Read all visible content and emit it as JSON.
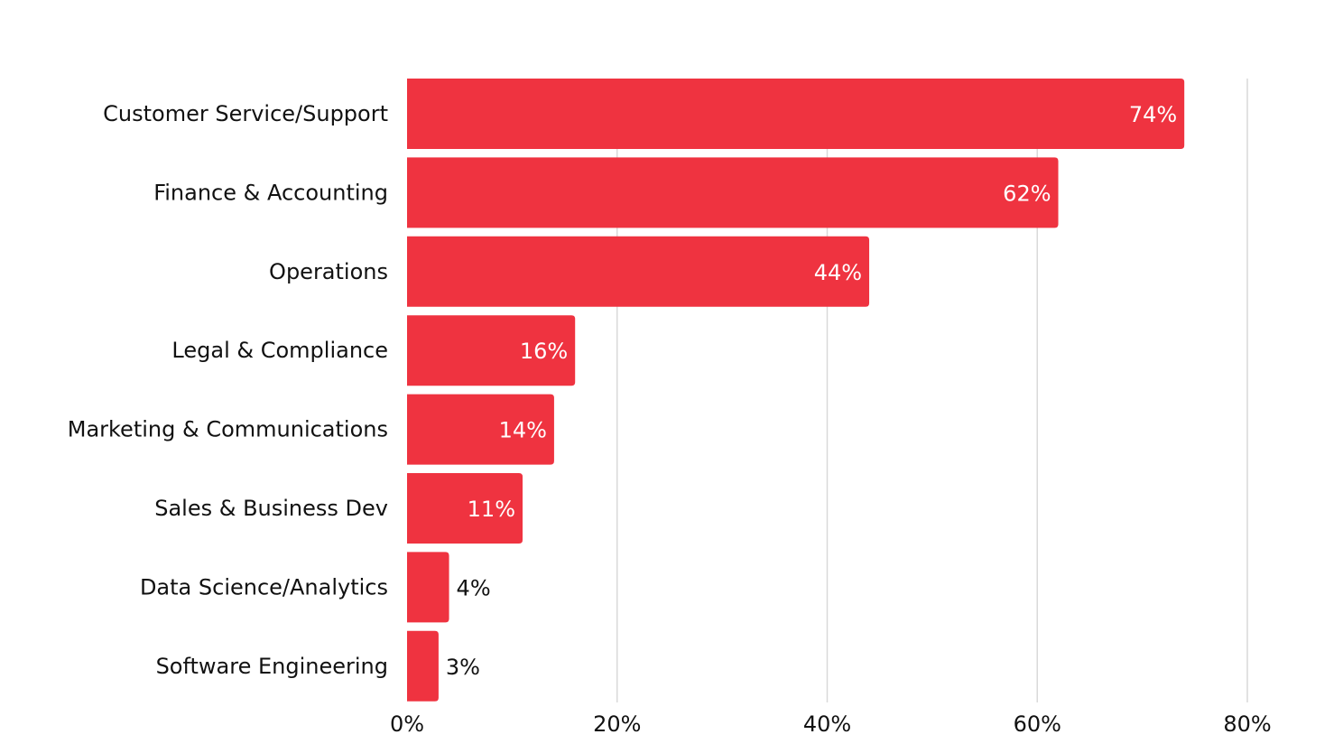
{
  "chart_data": {
    "type": "bar",
    "orientation": "horizontal",
    "title": "",
    "xlabel": "",
    "ylabel": "",
    "categories": [
      "Customer Service/Support",
      "Finance & Accounting",
      "Operations",
      "Legal & Compliance",
      "Marketing & Communications",
      "Sales & Business Dev",
      "Data Science/Analytics",
      "Software Engineering"
    ],
    "values": [
      74,
      62,
      44,
      16,
      14,
      11,
      4,
      3
    ],
    "value_labels": [
      "74%",
      "62%",
      "44%",
      "16%",
      "14%",
      "11%",
      "4%",
      "3%"
    ],
    "xlim": [
      0,
      80
    ],
    "x_ticks": [
      0,
      20,
      40,
      60,
      80
    ],
    "x_tick_labels": [
      "0%",
      "20%",
      "40%",
      "60%",
      "80%"
    ],
    "grid": "vertical",
    "legend": "none"
  },
  "colors": {
    "bar": "#EF3340",
    "label_inside": "#ffffff",
    "label_outside": "#111111"
  }
}
